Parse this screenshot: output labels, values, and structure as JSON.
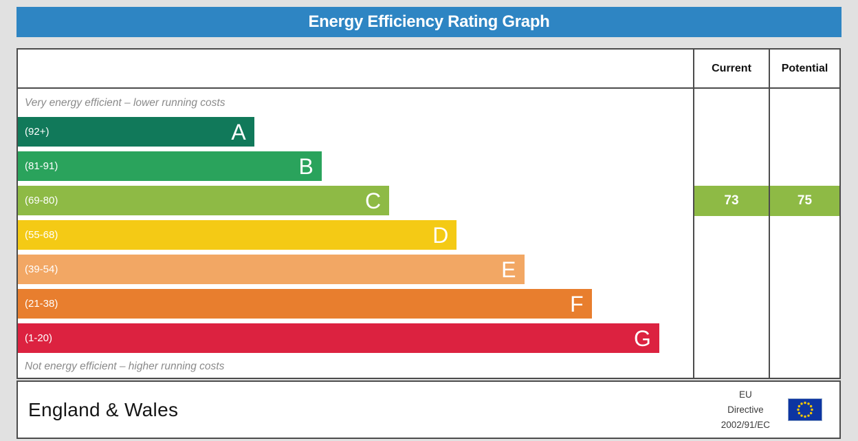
{
  "title": "Energy Efficiency Rating Graph",
  "colors": {
    "page_bg": "#e1e1e1",
    "header_bg": "#2e85c3",
    "table_border": "#4b4b4b",
    "caption_text": "#8a8a8a",
    "rating_box": "#8eba45"
  },
  "chart_data": {
    "type": "bar",
    "title": "Energy Efficiency Rating Graph",
    "top_caption": "Very energy efficient – lower running costs",
    "bottom_caption": "Not energy efficient – higher running costs",
    "bands": [
      {
        "letter": "A",
        "range": "(92+)",
        "min": 92,
        "max": 100,
        "color": "#11795a",
        "width_pct": 35
      },
      {
        "letter": "B",
        "range": "(81-91)",
        "min": 81,
        "max": 91,
        "color": "#2aa35c",
        "width_pct": 45
      },
      {
        "letter": "C",
        "range": "(69-80)",
        "min": 69,
        "max": 80,
        "color": "#8eba45",
        "width_pct": 55
      },
      {
        "letter": "D",
        "range": "(55-68)",
        "min": 55,
        "max": 68,
        "color": "#f4ca15",
        "width_pct": 65
      },
      {
        "letter": "E",
        "range": "(39-54)",
        "min": 39,
        "max": 54,
        "color": "#f2a764",
        "width_pct": 75
      },
      {
        "letter": "F",
        "range": "(21-38)",
        "min": 21,
        "max": 38,
        "color": "#e87e2e",
        "width_pct": 85
      },
      {
        "letter": "G",
        "range": "(1-20)",
        "min": 1,
        "max": 20,
        "color": "#dc2240",
        "width_pct": 95
      }
    ],
    "columns": {
      "current": "Current",
      "potential": "Potential"
    },
    "ratings": {
      "current": {
        "value": 73,
        "band": "C"
      },
      "potential": {
        "value": 75,
        "band": "C"
      }
    }
  },
  "footer": {
    "region": "England & Wales",
    "directive_lines": [
      "EU",
      "Directive",
      "2002/91/EC"
    ],
    "eu_flag": {
      "background": "#0d35a2",
      "stars": "#f8c800",
      "border": "#8fa6c8"
    }
  }
}
